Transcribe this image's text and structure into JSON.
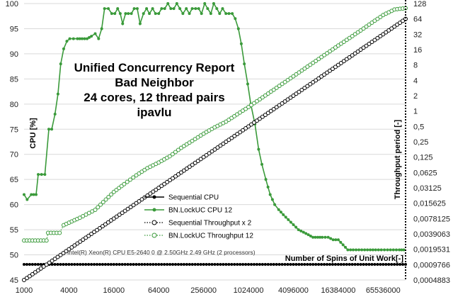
{
  "chart_data": {
    "type": "line",
    "title_lines": [
      "Unified Concurrency Report",
      "Bad Neighbor",
      "24 cores, 12 thread pairs",
      "ipavlu"
    ],
    "xlabel": "Number of Spins of Unit Work[-]",
    "ylabel_left": "CPU [%]",
    "ylabel_right": "Throughput period [-]",
    "x_scale": "log2",
    "xlim": [
      1000,
      131072000
    ],
    "x_ticks": [
      "1000",
      "4000",
      "16000",
      "64000",
      "256000",
      "1024000",
      "4096000",
      "16384000",
      "65536000"
    ],
    "ylim_left": [
      45,
      100
    ],
    "y_ticks_left": [
      "45",
      "50",
      "55",
      "60",
      "65",
      "70",
      "75",
      "80",
      "85",
      "90",
      "95",
      "100"
    ],
    "y_scale_right": "log2",
    "ylim_right": [
      0.000488281,
      128
    ],
    "y_ticks_right": [
      "0,0004883",
      "0,0009766",
      "0,0019531",
      "0,0039063",
      "0,0078125",
      "0,015625",
      "0,03125",
      "0,0625",
      "0,125",
      "0,25",
      "0,5",
      "1",
      "2",
      "4",
      "8",
      "16",
      "32",
      "64",
      "128"
    ],
    "note": "Intel(R) Xeon(R) CPU E5-2640 0 @ 2.50GHz  2.49 GHz  (2 processors)",
    "legend_position": "bottom-left",
    "series": [
      {
        "name": "Sequential CPU",
        "axis": "left",
        "color": "#000000",
        "line_style": "solid",
        "marker": "filled",
        "points": [
          [
            1000,
            48.1
          ],
          [
            131072000,
            48.1
          ]
        ]
      },
      {
        "name": "BN.LockUC CPU 12",
        "axis": "left",
        "color": "#3a9a3a",
        "line_style": "solid",
        "marker": "filled",
        "points": [
          [
            1000,
            62
          ],
          [
            1100,
            61
          ],
          [
            1250,
            62
          ],
          [
            1450,
            62
          ],
          [
            1550,
            66
          ],
          [
            1900,
            66
          ],
          [
            2150,
            75
          ],
          [
            2350,
            75
          ],
          [
            2600,
            78
          ],
          [
            2850,
            82
          ],
          [
            3100,
            88
          ],
          [
            3400,
            91
          ],
          [
            3750,
            92.5
          ],
          [
            4100,
            93
          ],
          [
            4600,
            93
          ],
          [
            5200,
            93
          ],
          [
            6000,
            93
          ],
          [
            7000,
            93
          ],
          [
            8000,
            93.5
          ],
          [
            9000,
            94
          ],
          [
            10000,
            93
          ],
          [
            11000,
            95
          ],
          [
            12000,
            99
          ],
          [
            13500,
            99
          ],
          [
            15000,
            98
          ],
          [
            16500,
            98
          ],
          [
            18000,
            99
          ],
          [
            19500,
            98
          ],
          [
            21000,
            96
          ],
          [
            23000,
            98
          ],
          [
            25000,
            98
          ],
          [
            27500,
            98
          ],
          [
            30000,
            99
          ],
          [
            33000,
            99
          ],
          [
            36000,
            96
          ],
          [
            40000,
            98
          ],
          [
            44000,
            99
          ],
          [
            48000,
            98
          ],
          [
            53000,
            99
          ],
          [
            58000,
            98
          ],
          [
            64000,
            98
          ],
          [
            70000,
            99
          ],
          [
            77000,
            99
          ],
          [
            85000,
            100
          ],
          [
            93000,
            99
          ],
          [
            102000,
            99
          ],
          [
            112000,
            100
          ],
          [
            123000,
            99
          ],
          [
            135000,
            98
          ],
          [
            150000,
            99
          ],
          [
            165000,
            98
          ],
          [
            180000,
            99
          ],
          [
            200000,
            99
          ],
          [
            220000,
            99
          ],
          [
            240000,
            98
          ],
          [
            265000,
            100
          ],
          [
            290000,
            99
          ],
          [
            320000,
            98
          ],
          [
            350000,
            100
          ],
          [
            385000,
            99
          ],
          [
            420000,
            98
          ],
          [
            460000,
            99
          ],
          [
            510000,
            98
          ],
          [
            560000,
            98
          ],
          [
            620000,
            98
          ],
          [
            680000,
            97
          ],
          [
            750000,
            95
          ],
          [
            820000,
            92
          ],
          [
            900000,
            88
          ],
          [
            1000000,
            84
          ],
          [
            1100000,
            80
          ],
          [
            1250000,
            76
          ],
          [
            1400000,
            71
          ],
          [
            1550000,
            68
          ],
          [
            1750000,
            65
          ],
          [
            2000000,
            62
          ],
          [
            2300000,
            60
          ],
          [
            2600000,
            59
          ],
          [
            3000000,
            58
          ],
          [
            3500000,
            57
          ],
          [
            4100000,
            56
          ],
          [
            4800000,
            55
          ],
          [
            5600000,
            54.5
          ],
          [
            6500000,
            54
          ],
          [
            7500000,
            53.5
          ],
          [
            8700000,
            53.5
          ],
          [
            10000000,
            53.5
          ],
          [
            12000000,
            53.5
          ],
          [
            14000000,
            53
          ],
          [
            16400000,
            53
          ],
          [
            19000000,
            52
          ],
          [
            22000000,
            51
          ],
          [
            26000000,
            51
          ],
          [
            31000000,
            51
          ],
          [
            37000000,
            51
          ],
          [
            44000000,
            51
          ],
          [
            52000000,
            51
          ],
          [
            62000000,
            51
          ],
          [
            75000000,
            51
          ],
          [
            90000000,
            51
          ],
          [
            108000000,
            51
          ],
          [
            124000000,
            51
          ]
        ]
      },
      {
        "name": "Sequential Throughput x 2",
        "axis": "right",
        "color": "#000000",
        "line_style": "dotted",
        "marker": "open",
        "points": [
          [
            1000,
            0.00048828
          ],
          [
            131072000,
            64
          ]
        ]
      },
      {
        "name": "BN.LockUC Throughput 12",
        "axis": "right",
        "color": "#3a9a3a",
        "line_style": "dotted",
        "marker": "open",
        "points": [
          [
            1000,
            0.0029
          ],
          [
            2000,
            0.0029
          ],
          [
            2100,
            0.0041
          ],
          [
            3000,
            0.0041
          ],
          [
            3400,
            0.0058
          ],
          [
            5600,
            0.0081
          ],
          [
            9000,
            0.0116
          ],
          [
            16000,
            0.026
          ],
          [
            22000,
            0.037
          ],
          [
            32000,
            0.055
          ],
          [
            45000,
            0.076
          ],
          [
            64000,
            0.098
          ],
          [
            90000,
            0.13
          ],
          [
            128000,
            0.19
          ],
          [
            180000,
            0.26
          ],
          [
            256000,
            0.36
          ],
          [
            360000,
            0.48
          ],
          [
            512000,
            0.62
          ],
          [
            720000,
            0.86
          ],
          [
            1024000,
            1.2
          ],
          [
            1450000,
            1.7
          ],
          [
            2048000,
            2.4
          ],
          [
            2900000,
            3.4
          ],
          [
            4096000,
            4.8
          ],
          [
            5800000,
            6.8
          ],
          [
            8192000,
            9.6
          ],
          [
            11600000,
            13.6
          ],
          [
            16384000,
            19.2
          ],
          [
            23200000,
            27
          ],
          [
            32768000,
            38
          ],
          [
            46300000,
            54
          ],
          [
            65536000,
            76
          ],
          [
            93000000,
            98
          ],
          [
            131072000,
            104
          ]
        ]
      }
    ]
  }
}
